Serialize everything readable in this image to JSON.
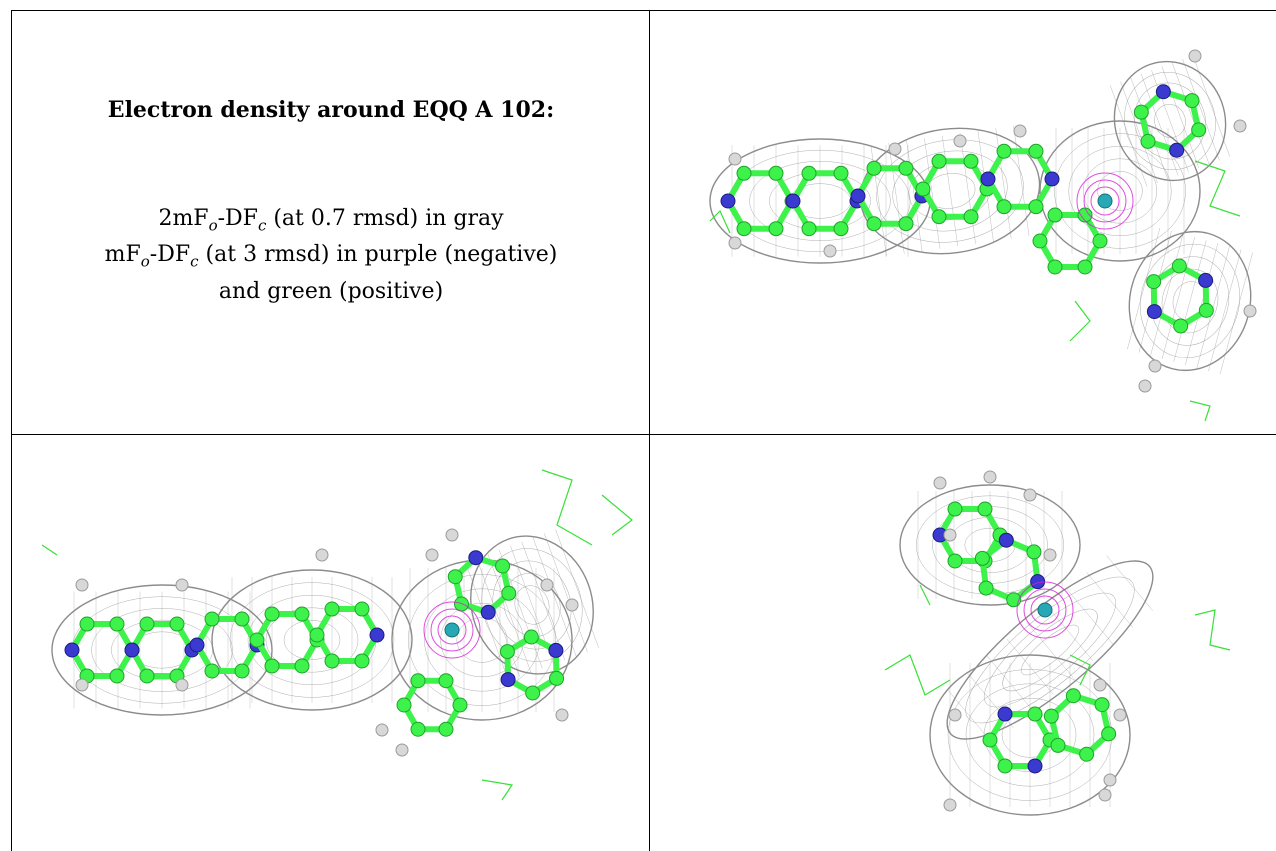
{
  "title": "Electron density around EQQ A 102:",
  "legend": {
    "line1": {
      "a": "2mF",
      "a_sub": "o",
      "b": "-DF",
      "b_sub": "c",
      "rest": " (at 0.7 rmsd) in gray"
    },
    "line2": {
      "a": "mF",
      "a_sub": "o",
      "b": "-DF",
      "b_sub": "c",
      "rest": " (at 3 rmsd) in purple (negative)"
    },
    "line3": "and green (positive)"
  },
  "colors": {
    "mesh": "#8c8c8c",
    "carbon": "#3df24a",
    "nitrogen": "#3a3ad0",
    "hydrogen": "#d8d8d8",
    "metal": "#27a8b4",
    "negative_density": "#d81fd8",
    "positive_density": "#38e038"
  },
  "panels": [
    {
      "name": "density-view-top-right"
    },
    {
      "name": "density-view-bottom-left"
    },
    {
      "name": "density-view-bottom-right"
    }
  ]
}
